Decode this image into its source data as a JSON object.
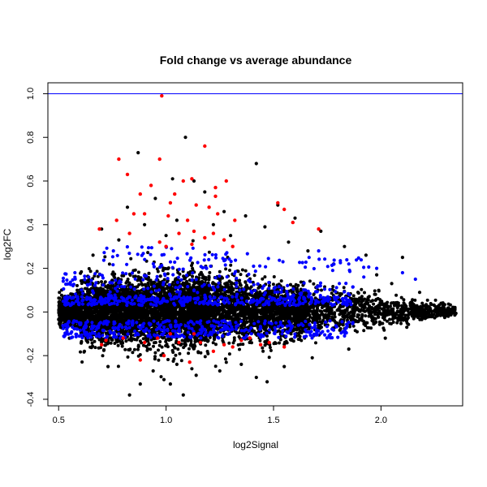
{
  "chart_data": {
    "type": "scatter",
    "title": "Fold change vs average abundance",
    "xlabel": "log2Signal",
    "ylabel": "log2FC",
    "xlim": [
      0.45,
      2.38
    ],
    "ylim": [
      -0.43,
      1.05
    ],
    "x_ticks": [
      0.5,
      1.0,
      1.5,
      2.0
    ],
    "x_tick_labels": [
      "0.5",
      "1.0",
      "1.5",
      "2.0"
    ],
    "y_ticks": [
      -0.4,
      -0.2,
      0.0,
      0.2,
      0.4,
      0.6,
      0.8,
      1.0
    ],
    "y_tick_labels": [
      "-0.4",
      "-0.2",
      "0.0",
      "0.2",
      "0.4",
      "0.6",
      "0.8",
      "1.0"
    ],
    "grid": false,
    "legend": "none",
    "reference_line": {
      "y": 1.0,
      "color": "#0000ff"
    },
    "colors": {
      "black": "#000000",
      "blue": "#0000ff",
      "red": "#ff0000"
    },
    "series": [
      {
        "color": "black",
        "points": [
          [
            1.09,
            0.8
          ],
          [
            0.87,
            0.73
          ],
          [
            1.42,
            0.68
          ],
          [
            1.13,
            0.6
          ],
          [
            1.03,
            0.61
          ],
          [
            1.18,
            0.55
          ],
          [
            1.52,
            0.49
          ],
          [
            1.6,
            0.43
          ],
          [
            1.37,
            0.44
          ],
          [
            0.95,
            0.52
          ],
          [
            0.82,
            0.48
          ],
          [
            1.27,
            0.46
          ],
          [
            1.46,
            0.39
          ],
          [
            1.72,
            0.37
          ],
          [
            1.83,
            0.3
          ],
          [
            1.93,
            0.26
          ],
          [
            2.1,
            0.25
          ],
          [
            0.7,
            0.38
          ],
          [
            1.05,
            0.42
          ],
          [
            1.22,
            0.4
          ],
          [
            1.3,
            0.35
          ],
          [
            0.9,
            0.4
          ],
          [
            1.0,
            0.35
          ],
          [
            1.57,
            0.32
          ],
          [
            1.66,
            0.28
          ],
          [
            1.78,
            0.22
          ],
          [
            1.98,
            0.17
          ],
          [
            2.05,
            0.13
          ],
          [
            2.18,
            0.09
          ],
          [
            2.28,
            0.04
          ],
          [
            0.78,
            0.33
          ],
          [
            0.66,
            0.26
          ],
          [
            1.14,
            -0.29
          ],
          [
            1.02,
            -0.33
          ],
          [
            0.88,
            -0.33
          ],
          [
            1.08,
            -0.38
          ],
          [
            1.42,
            -0.3
          ],
          [
            1.47,
            -0.32
          ],
          [
            0.83,
            -0.38
          ],
          [
            0.99,
            -0.31
          ],
          [
            1.25,
            -0.27
          ],
          [
            0.73,
            -0.25
          ],
          [
            1.55,
            -0.25
          ],
          [
            1.68,
            -0.21
          ],
          [
            1.85,
            -0.17
          ],
          [
            2.02,
            -0.12
          ],
          [
            2.12,
            -0.07
          ],
          [
            2.3,
            -0.02
          ],
          [
            1.35,
            -0.24
          ],
          [
            0.62,
            -0.18
          ],
          [
            0.55,
            -0.12
          ],
          [
            1.12,
            -0.26
          ],
          [
            0.94,
            -0.27
          ],
          [
            1.05,
            -0.24
          ]
        ]
      },
      {
        "color": "blue",
        "points": []
      },
      {
        "color": "red",
        "points": [
          [
            0.98,
            0.99
          ],
          [
            1.18,
            0.76
          ],
          [
            0.78,
            0.7
          ],
          [
            0.82,
            0.63
          ],
          [
            0.97,
            0.7
          ],
          [
            0.93,
            0.58
          ],
          [
            1.12,
            0.61
          ],
          [
            1.08,
            0.6
          ],
          [
            1.28,
            0.6
          ],
          [
            1.23,
            0.57
          ],
          [
            1.23,
            0.53
          ],
          [
            1.04,
            0.54
          ],
          [
            0.88,
            0.54
          ],
          [
            1.02,
            0.5
          ],
          [
            1.14,
            0.49
          ],
          [
            1.2,
            0.48
          ],
          [
            1.24,
            0.45
          ],
          [
            1.32,
            0.42
          ],
          [
            1.1,
            0.42
          ],
          [
            1.01,
            0.44
          ],
          [
            0.85,
            0.45
          ],
          [
            0.9,
            0.45
          ],
          [
            1.55,
            0.47
          ],
          [
            1.52,
            0.5
          ],
          [
            1.71,
            0.38
          ],
          [
            1.59,
            0.41
          ],
          [
            0.69,
            0.38
          ],
          [
            0.77,
            0.42
          ],
          [
            1.13,
            0.37
          ],
          [
            1.06,
            0.36
          ],
          [
            1.18,
            0.34
          ],
          [
            1.22,
            0.36
          ],
          [
            1.27,
            0.33
          ],
          [
            1.31,
            0.3
          ],
          [
            0.83,
            0.36
          ],
          [
            1.0,
            0.3
          ],
          [
            0.97,
            0.32
          ],
          [
            1.12,
            0.31
          ],
          [
            0.72,
            -0.13
          ],
          [
            0.8,
            -0.12
          ],
          [
            0.9,
            -0.14
          ],
          [
            0.96,
            -0.12
          ],
          [
            1.06,
            -0.14
          ],
          [
            1.16,
            -0.14
          ],
          [
            1.27,
            -0.15
          ],
          [
            1.35,
            -0.13
          ],
          [
            1.44,
            -0.15
          ],
          [
            1.55,
            -0.16
          ],
          [
            0.99,
            -0.2
          ],
          [
            1.11,
            -0.23
          ],
          [
            1.22,
            -0.18
          ],
          [
            0.88,
            -0.22
          ],
          [
            1.39,
            -0.12
          ],
          [
            1.48,
            -0.14
          ],
          [
            1.13,
            -0.1
          ],
          [
            0.7,
            -0.15
          ],
          [
            1.02,
            -0.1
          ],
          [
            1.31,
            -0.16
          ]
        ]
      }
    ],
    "point_cloud": {
      "n": 7000,
      "trend": "centered near log2FC 0 across log2Signal 0.5 to 2.35, widest spread around 1.0, narrowing toward high signal",
      "blue_band_y": [
        -0.12,
        -0.04,
        0.03,
        0.18
      ]
    }
  }
}
